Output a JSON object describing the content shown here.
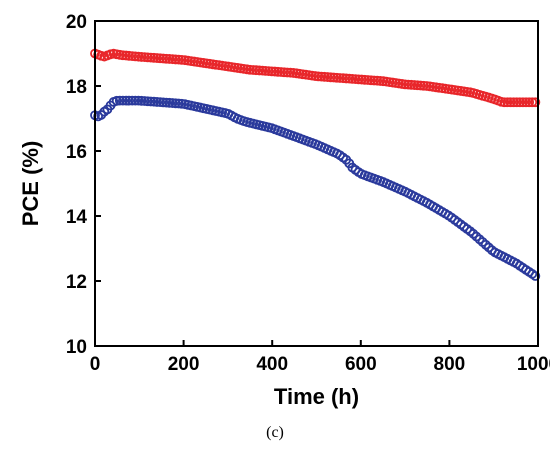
{
  "chart_data": {
    "type": "scatter",
    "xlabel": "Time (h)",
    "ylabel": "PCE (%)",
    "xlim": [
      0,
      1000
    ],
    "ylim": [
      10,
      20
    ],
    "xticks": [
      0,
      200,
      400,
      600,
      800,
      1000
    ],
    "yticks": [
      10,
      12,
      14,
      16,
      18,
      20
    ],
    "grid": false,
    "series": [
      {
        "color": "#e8262a",
        "x": [
          0,
          20,
          40,
          60,
          100,
          150,
          200,
          250,
          300,
          350,
          400,
          450,
          500,
          550,
          600,
          650,
          700,
          750,
          800,
          850,
          900,
          920,
          950,
          1000
        ],
        "values": [
          19.0,
          18.9,
          19.0,
          18.95,
          18.9,
          18.85,
          18.8,
          18.7,
          18.6,
          18.5,
          18.45,
          18.4,
          18.3,
          18.25,
          18.2,
          18.15,
          18.05,
          18.0,
          17.9,
          17.8,
          17.6,
          17.5,
          17.5,
          17.5
        ]
      },
      {
        "color": "#2b3a9c",
        "x": [
          0,
          10,
          20,
          30,
          40,
          50,
          100,
          150,
          200,
          250,
          300,
          320,
          340,
          400,
          450,
          500,
          550,
          570,
          580,
          600,
          650,
          700,
          750,
          800,
          850,
          900,
          950,
          1000
        ],
        "values": [
          17.1,
          17.05,
          17.2,
          17.3,
          17.5,
          17.55,
          17.55,
          17.5,
          17.45,
          17.3,
          17.15,
          17.0,
          16.9,
          16.7,
          16.45,
          16.2,
          15.9,
          15.7,
          15.5,
          15.3,
          15.05,
          14.75,
          14.4,
          14.0,
          13.5,
          12.9,
          12.55,
          12.1
        ]
      }
    ]
  },
  "caption": "(c)"
}
